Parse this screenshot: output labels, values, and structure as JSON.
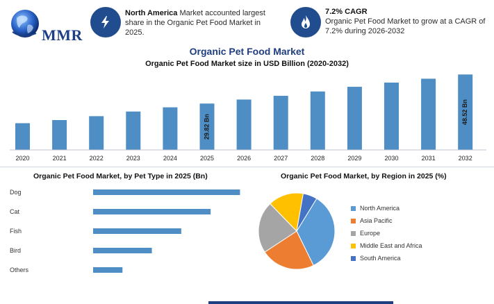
{
  "header": {
    "logo_text": "MMR",
    "info1_bold": "North America",
    "info1_text": " Market accounted largest share in the Organic Pet Food Market in 2025.",
    "info2_bold": "7.2% CAGR",
    "info2_text": "Organic Pet Food Market to grow at a CAGR of 7.2% during 2026-2032"
  },
  "colors": {
    "bar": "#4f8ec4",
    "navy": "#214c8e"
  },
  "chart_data": [
    {
      "type": "bar",
      "title": "Organic Pet Food Market",
      "subtitle": "Organic Pet Food Market size in USD Billion (2020-2032)",
      "categories": [
        "2020",
        "2021",
        "2022",
        "2023",
        "2024",
        "2025",
        "2026",
        "2027",
        "2028",
        "2029",
        "2030",
        "2031",
        "2032"
      ],
      "values": [
        17.2,
        19.2,
        21.7,
        24.7,
        27.4,
        29.82,
        32.4,
        34.8,
        37.6,
        40.6,
        43.3,
        45.8,
        48.52
      ],
      "data_labels": {
        "5": "29.82 Bn",
        "12": "48.52 Bn"
      },
      "ylim": [
        0,
        50
      ]
    },
    {
      "type": "bar",
      "orientation": "horizontal",
      "title": "Organic Pet Food Market, by Pet Type in 2025 (Bn)",
      "categories": [
        "Dog",
        "Cat",
        "Fish",
        "Bird",
        "Others"
      ],
      "values": [
        10.0,
        8.0,
        6.0,
        4.0,
        2.0
      ],
      "xlim": [
        0,
        10.5
      ]
    },
    {
      "type": "pie",
      "title": "Organic Pet Food Market, by Region in 2025 (%)",
      "labels": [
        "North America",
        "Asia Pacific",
        "Europe",
        "Middle East and Africa",
        "South America"
      ],
      "values": [
        34,
        23,
        22,
        15,
        6
      ],
      "colors": [
        "#5b9bd5",
        "#ed7d31",
        "#a5a5a5",
        "#ffc000",
        "#4472c4"
      ],
      "legend_position": "right"
    }
  ]
}
